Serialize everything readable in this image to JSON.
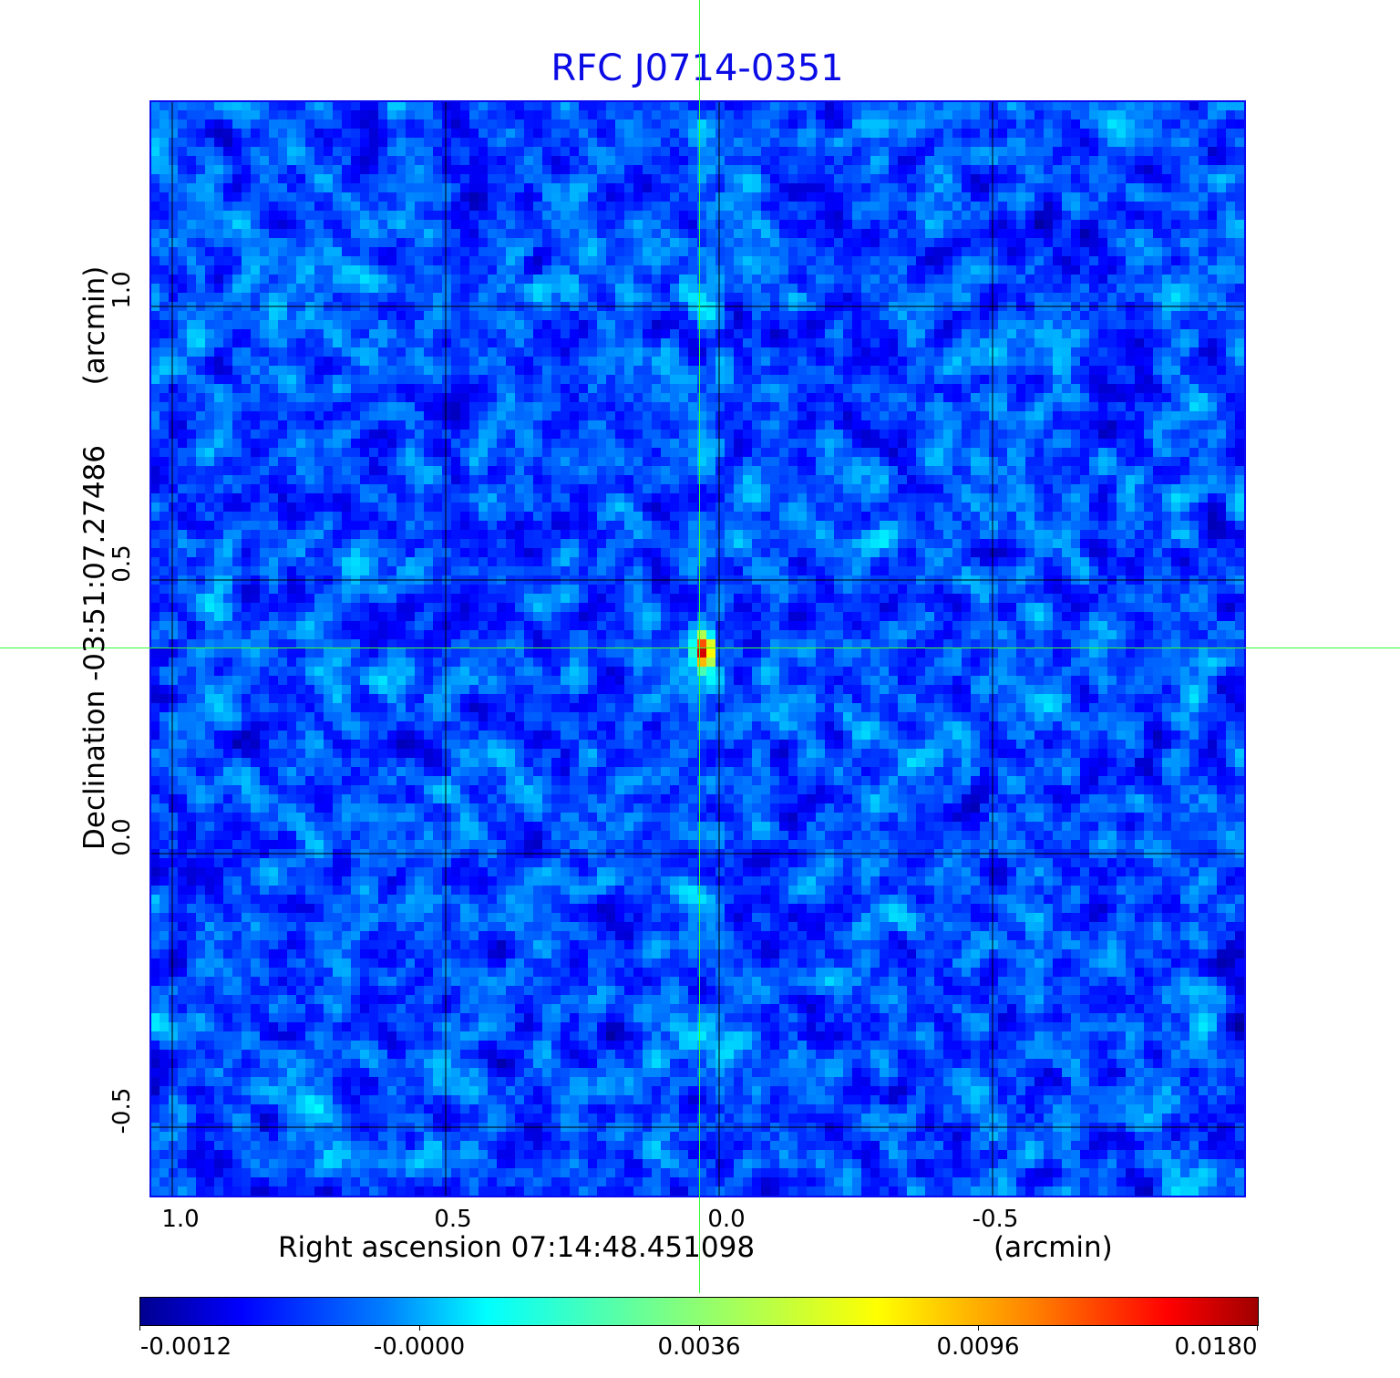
{
  "chart_data": {
    "type": "heatmap",
    "title": "RFC J0714-0351",
    "xlabel": "Right ascension  07:14:48.451098",
    "xunit": "(arcmin)",
    "ylabel": "Declination  -03:51:07.27486",
    "yunit": "(arcmin)",
    "xlim": [
      1.04,
      -0.96
    ],
    "ylim": [
      -0.625,
      1.375
    ],
    "x_ticks": [
      "1.0",
      "0.5",
      "0.0",
      "-0.5"
    ],
    "x_tick_values": [
      1.0,
      0.5,
      0.0,
      -0.5
    ],
    "y_ticks": [
      "1.0",
      "0.5",
      "0.0",
      "-0.5"
    ],
    "y_tick_values": [
      1.0,
      0.5,
      0.0,
      -0.5
    ],
    "grid": true,
    "crosshair": {
      "x": 0.037,
      "y": 0.377
    },
    "source_peak": {
      "x": 0.035,
      "y": 0.38,
      "value": 0.018
    },
    "colormap": "jet",
    "colorbar": {
      "ticks": [
        "-0.0012",
        "-0.0000",
        "0.0036",
        "0.0096",
        "0.0180"
      ],
      "placement": "bottom"
    }
  },
  "colors": {
    "title": "#0b0be6",
    "frame": "#0a0af0",
    "crosshair": "#33ff33"
  }
}
